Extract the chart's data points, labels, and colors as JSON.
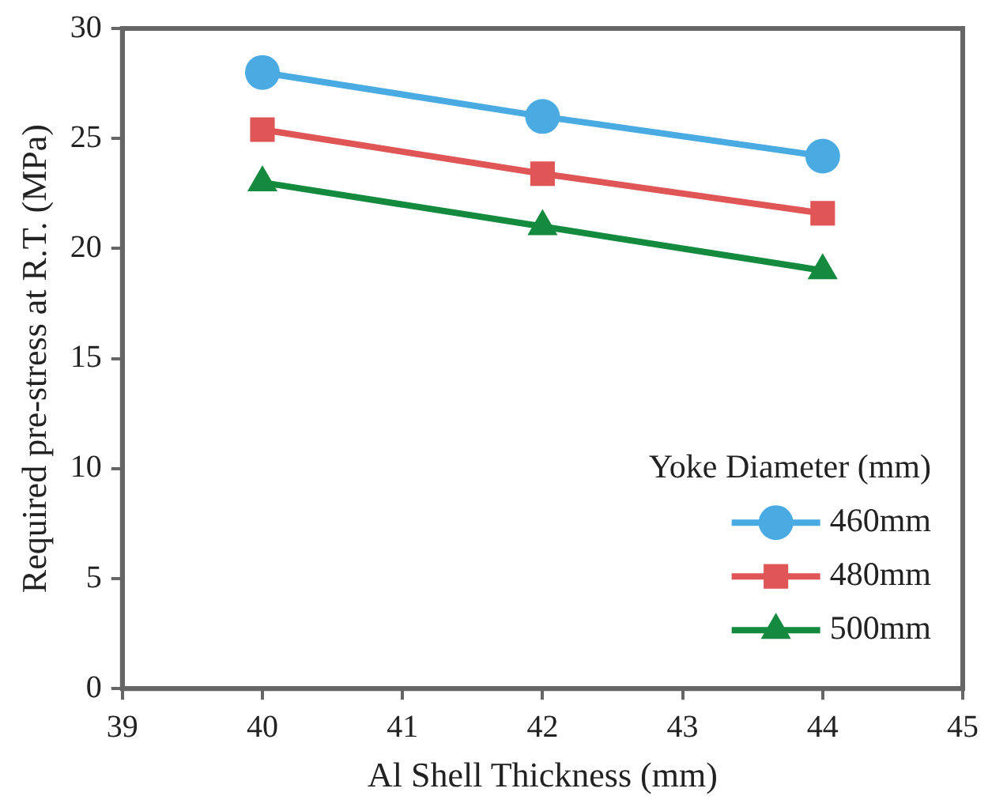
{
  "chart_data": {
    "type": "line",
    "xlabel": "Al Shell Thickness (mm)",
    "ylabel": "Required pre-stress at R.T. (MPa)",
    "legend_title": "Yoke Diameter (mm)",
    "x": [
      40,
      42,
      44
    ],
    "series": [
      {
        "name": "460mm",
        "color": "#4aaae2",
        "marker": "circle",
        "values": [
          28,
          26,
          24.2
        ]
      },
      {
        "name": "480mm",
        "color": "#e05555",
        "marker": "square",
        "values": [
          25.4,
          23.4,
          21.6
        ]
      },
      {
        "name": "500mm",
        "color": "#138a3e",
        "marker": "triangle",
        "values": [
          23,
          21,
          19
        ]
      }
    ],
    "xlim": [
      39,
      45
    ],
    "xticks": [
      39,
      40,
      41,
      42,
      43,
      44,
      45
    ],
    "ylim": [
      0,
      30
    ],
    "yticks": [
      0,
      5,
      10,
      15,
      20,
      25,
      30
    ],
    "grid": false,
    "legend": "bottom right",
    "line_style": "solid"
  }
}
